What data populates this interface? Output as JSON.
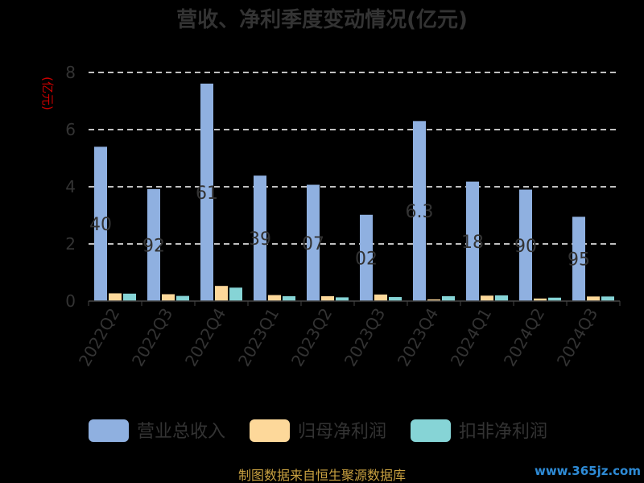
{
  "chart_data": {
    "type": "bar",
    "title": "营收、净利季度变动情况(亿元)",
    "ylabel": "(亿元)",
    "ylim": [
      0,
      8
    ],
    "yticks": [
      0,
      2,
      4,
      6,
      8
    ],
    "grid": true,
    "legend_position": "bottom",
    "categories": [
      "2022Q2",
      "2022Q3",
      "2022Q4",
      "2023Q1",
      "2023Q2",
      "2023Q3",
      "2023Q4",
      "2024Q1",
      "2024Q2",
      "2024Q3"
    ],
    "series": [
      {
        "name": "营业总收入",
        "color": "#8fb0e0",
        "values": [
          5.4,
          3.92,
          7.61,
          4.39,
          4.07,
          3.02,
          6.3,
          4.18,
          3.9,
          2.95
        ]
      },
      {
        "name": "归母净利润",
        "color": "#fdd89a",
        "values": [
          0.27,
          0.24,
          0.53,
          0.21,
          0.17,
          0.23,
          0.06,
          0.19,
          0.09,
          0.16
        ]
      },
      {
        "name": "扣非净利润",
        "color": "#86d4d6",
        "values": [
          0.26,
          0.18,
          0.47,
          0.17,
          0.13,
          0.14,
          0.17,
          0.2,
          0.12,
          0.16
        ]
      }
    ],
    "data_labels": [
      "40",
      "92",
      "61",
      "39",
      "07",
      "02",
      "6.3",
      "18",
      "90",
      "95"
    ]
  },
  "footer": {
    "source": "制图数据来自恒生聚源数据库",
    "watermark": "www.365jz.com"
  }
}
